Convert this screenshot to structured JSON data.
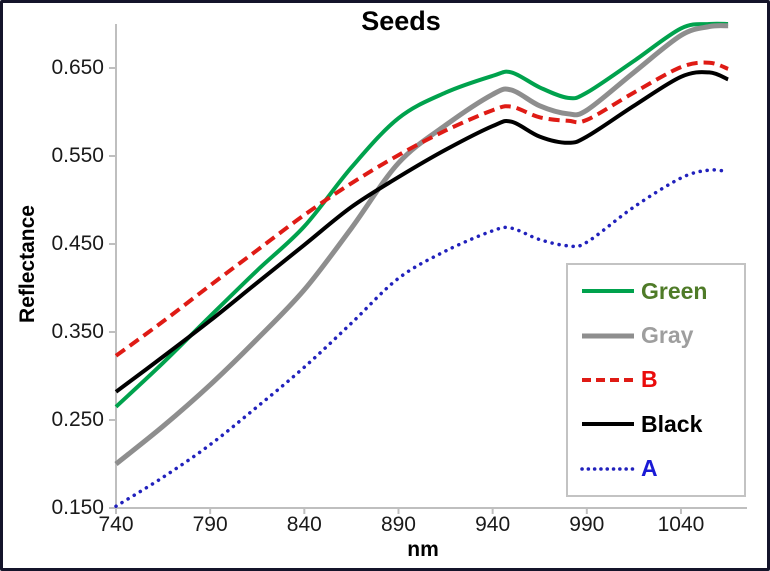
{
  "figure": {
    "background": "#FFFFFF",
    "border_color": "#14142A"
  },
  "chart_data": {
    "type": "line",
    "title": "Seeds",
    "xlabel": "nm",
    "ylabel": "Reflectance",
    "grid": false,
    "legend_position": "lower-right",
    "axis_color": "#BFBFBF",
    "xlim": [
      740,
      1074
    ],
    "ylim": [
      0.15,
      0.7
    ],
    "x_ticks": [
      "740",
      "790",
      "840",
      "890",
      "940",
      "990",
      "1040"
    ],
    "y_ticks": [
      "0.150",
      "0.250",
      "0.350",
      "0.450",
      "0.550",
      "0.650"
    ],
    "x": [
      740,
      765,
      790,
      815,
      840,
      865,
      890,
      915,
      940,
      950,
      965,
      980,
      990,
      1015,
      1040,
      1055,
      1065
    ],
    "series": [
      {
        "name": "Green",
        "line_color": "#00A24D",
        "label_color": "#4F7B28",
        "style": "solid",
        "width": 4,
        "values": [
          0.265,
          0.315,
          0.368,
          0.42,
          0.47,
          0.537,
          0.593,
          0.622,
          0.641,
          0.645,
          0.628,
          0.616,
          0.622,
          0.658,
          0.695,
          0.7,
          0.7
        ]
      },
      {
        "name": "Gray",
        "line_color": "#8E8E8E",
        "label_color": "#9E9E9E",
        "style": "solid",
        "width": 5,
        "values": [
          0.2,
          0.243,
          0.29,
          0.342,
          0.398,
          0.468,
          0.542,
          0.585,
          0.62,
          0.625,
          0.607,
          0.598,
          0.602,
          0.645,
          0.687,
          0.697,
          0.698
        ]
      },
      {
        "name": "B",
        "line_color": "#DF1B15",
        "label_color": "#EA0C0C",
        "style": "dashed",
        "width": 4,
        "values": [
          0.323,
          0.362,
          0.403,
          0.443,
          0.483,
          0.519,
          0.551,
          0.579,
          0.602,
          0.606,
          0.594,
          0.59,
          0.591,
          0.622,
          0.651,
          0.656,
          0.649
        ]
      },
      {
        "name": "Black",
        "line_color": "#000000",
        "label_color": "#000000",
        "style": "solid",
        "width": 4,
        "values": [
          0.282,
          0.322,
          0.363,
          0.406,
          0.449,
          0.492,
          0.526,
          0.557,
          0.584,
          0.589,
          0.572,
          0.565,
          0.572,
          0.607,
          0.64,
          0.645,
          0.637
        ]
      },
      {
        "name": "A",
        "line_color": "#2121BC",
        "label_color": "#1A1AD6",
        "style": "dotted",
        "width": 3.5,
        "values": [
          0.152,
          0.185,
          0.222,
          0.265,
          0.31,
          0.36,
          0.411,
          0.442,
          0.465,
          0.468,
          0.455,
          0.448,
          0.452,
          0.492,
          0.525,
          0.534,
          0.532
        ]
      }
    ]
  }
}
